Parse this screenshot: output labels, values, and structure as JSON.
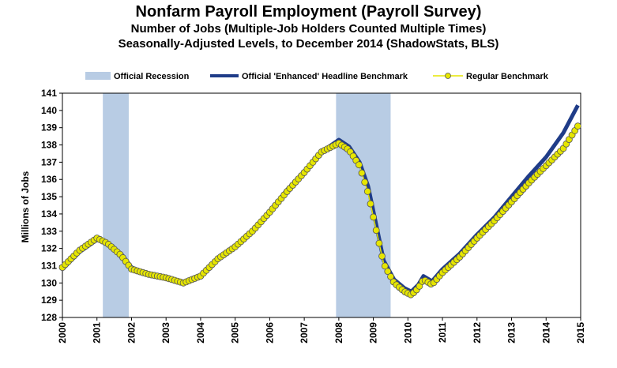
{
  "chart_data": {
    "type": "line",
    "title": "Nonfarm Payroll Employment  (Payroll Survey)",
    "subtitle": "Number of Jobs (Multiple-Job Holders Counted Multiple  Times)",
    "subtitle2": "Seasonally-Adjusted Levels, to December 2014 (ShadowStats, BLS)",
    "xlabel": "",
    "ylabel": "Millions  of  Jobs",
    "xlim": [
      2000,
      2015
    ],
    "ylim": [
      128,
      141
    ],
    "x_ticks": [
      "2000",
      "2001",
      "2002",
      "2003",
      "2004",
      "2005",
      "2006",
      "2007",
      "2008",
      "2009",
      "2010",
      "2011",
      "2012",
      "2013",
      "2014",
      "2015"
    ],
    "y_ticks": [
      "128",
      "129",
      "130",
      "131",
      "132",
      "133",
      "134",
      "135",
      "136",
      "137",
      "138",
      "139",
      "140",
      "141"
    ],
    "grid": false,
    "legend_position": "top",
    "legend": [
      {
        "label": "Official Recession",
        "kind": "band",
        "color": "#b8cce4"
      },
      {
        "label": "Official 'Enhanced' Headline Benchmark",
        "kind": "line",
        "color": "#1f3c88"
      },
      {
        "label": "Regular Benchmark",
        "kind": "markerline",
        "color": "#e6e600"
      }
    ],
    "recessions": [
      {
        "start": 2001.17,
        "end": 2001.92
      },
      {
        "start": 2007.92,
        "end": 2009.5
      }
    ],
    "series": [
      {
        "name": "Official 'Enhanced' Headline Benchmark",
        "color": "#1f3c88",
        "points": [
          [
            2000,
            130.8
          ],
          [
            2000.5,
            131.8
          ],
          [
            2001,
            132.5
          ],
          [
            2001.3,
            132.3
          ],
          [
            2001.7,
            131.7
          ],
          [
            2002,
            130.9
          ],
          [
            2002.5,
            130.5
          ],
          [
            2003,
            130.3
          ],
          [
            2003.5,
            130.0
          ],
          [
            2004,
            130.4
          ],
          [
            2004.5,
            131.4
          ],
          [
            2005,
            132.1
          ],
          [
            2005.5,
            133.0
          ],
          [
            2006,
            134.1
          ],
          [
            2006.5,
            135.4
          ],
          [
            2007,
            136.4
          ],
          [
            2007.5,
            137.6
          ],
          [
            2008,
            138.3
          ],
          [
            2008.3,
            137.9
          ],
          [
            2008.6,
            137.0
          ],
          [
            2008.85,
            135.6
          ],
          [
            2009.1,
            133.2
          ],
          [
            2009.3,
            131.3
          ],
          [
            2009.6,
            130.2
          ],
          [
            2009.9,
            129.7
          ],
          [
            2010.1,
            129.5
          ],
          [
            2010.3,
            129.9
          ],
          [
            2010.45,
            130.4
          ],
          [
            2010.7,
            130.1
          ],
          [
            2011,
            130.8
          ],
          [
            2011.5,
            131.7
          ],
          [
            2012,
            132.8
          ],
          [
            2012.5,
            133.8
          ],
          [
            2013,
            135.0
          ],
          [
            2013.5,
            136.2
          ],
          [
            2014,
            137.3
          ],
          [
            2014.5,
            138.7
          ],
          [
            2014.92,
            140.3
          ]
        ]
      },
      {
        "name": "Regular Benchmark",
        "color": "#e6e600",
        "points": [
          [
            2000,
            130.9
          ],
          [
            2000.5,
            131.9
          ],
          [
            2001,
            132.6
          ],
          [
            2001.3,
            132.3
          ],
          [
            2001.7,
            131.6
          ],
          [
            2002,
            130.8
          ],
          [
            2002.5,
            130.5
          ],
          [
            2003,
            130.3
          ],
          [
            2003.5,
            130.0
          ],
          [
            2004,
            130.4
          ],
          [
            2004.5,
            131.4
          ],
          [
            2005,
            132.1
          ],
          [
            2005.5,
            133.0
          ],
          [
            2006,
            134.1
          ],
          [
            2006.5,
            135.3
          ],
          [
            2007,
            136.4
          ],
          [
            2007.5,
            137.6
          ],
          [
            2008,
            138.1
          ],
          [
            2008.3,
            137.7
          ],
          [
            2008.6,
            136.8
          ],
          [
            2008.85,
            135.2
          ],
          [
            2009.1,
            132.9
          ],
          [
            2009.3,
            131.1
          ],
          [
            2009.6,
            130.0
          ],
          [
            2009.9,
            129.5
          ],
          [
            2010.1,
            129.3
          ],
          [
            2010.3,
            129.7
          ],
          [
            2010.45,
            130.2
          ],
          [
            2010.7,
            129.9
          ],
          [
            2011,
            130.6
          ],
          [
            2011.5,
            131.5
          ],
          [
            2012,
            132.6
          ],
          [
            2012.5,
            133.6
          ],
          [
            2013,
            134.7
          ],
          [
            2013.5,
            135.8
          ],
          [
            2014,
            136.8
          ],
          [
            2014.5,
            137.8
          ],
          [
            2014.92,
            139.1
          ]
        ]
      }
    ]
  }
}
